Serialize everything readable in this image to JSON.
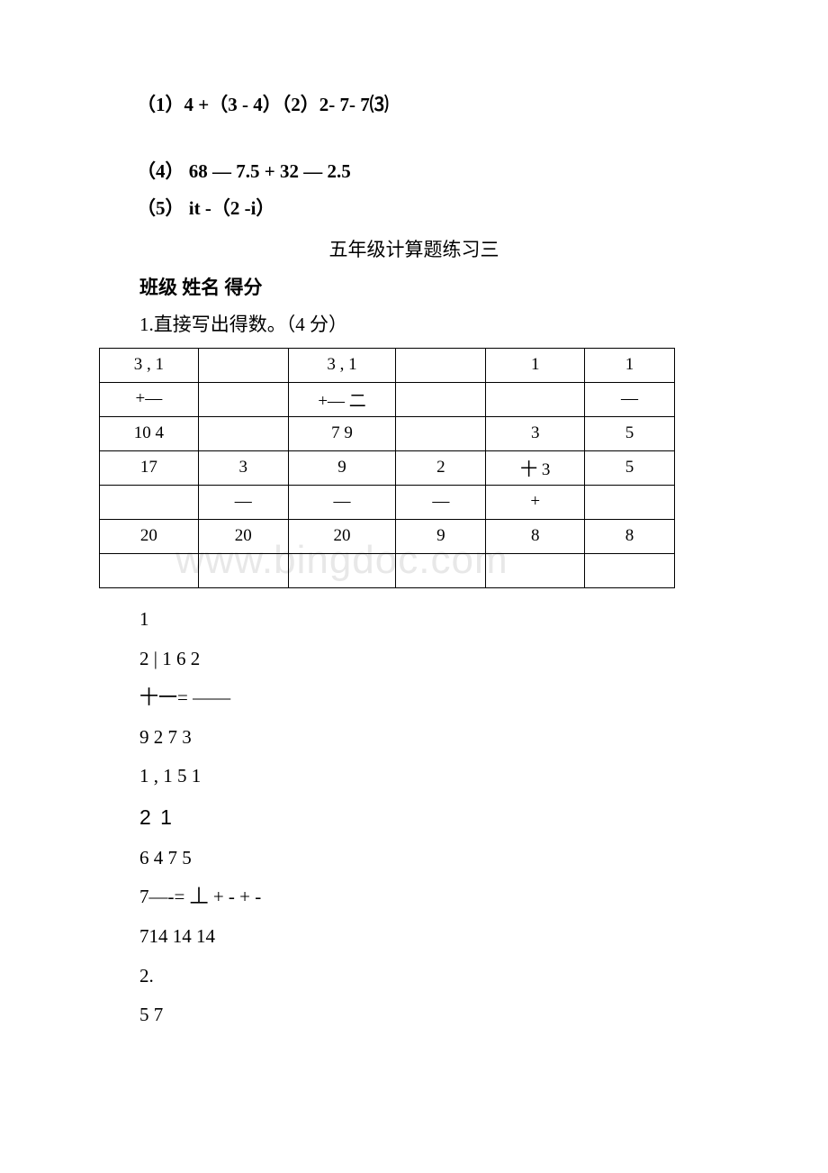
{
  "problems": {
    "p1_2": "（1）4 +（3 - 4）（2）2- 7- 7",
    "p3_marker": "⑶",
    "p4": "（4） 68 — 7.5 + 32 — 2.5",
    "p5": "（5） it -（2 -i）"
  },
  "section": {
    "title": "五年级计算题练习三",
    "header_line": "班级 姓名 得分",
    "q1": "1.直接写出得数。（4 分）"
  },
  "table": {
    "rows": [
      [
        "3 , 1",
        "",
        "3 , 1",
        "",
        "1",
        "1"
      ],
      [
        "+—",
        "",
        "+— 二",
        "",
        "",
        "—"
      ],
      [
        "10 4",
        "",
        "7 9",
        "",
        "3",
        "5"
      ],
      [
        "17",
        "3",
        "9",
        "2",
        "十 3",
        "5"
      ],
      [
        "",
        "—",
        "—",
        "—",
        "+",
        ""
      ],
      [
        "20",
        "20",
        "20",
        "9",
        "8",
        "8"
      ],
      [
        "",
        "",
        "",
        "",
        "",
        ""
      ]
    ]
  },
  "textlist": [
    "1",
    "2 | 1 6 2",
    "十一= ——",
    "9 2 7 3",
    "1 , 1 5 1",
    "2    1",
    "6 4 7 5",
    "7—-= 丄 + - + -",
    "714 14 14",
    "2.",
    "5 7"
  ],
  "watermark": "www.bingdoc.com",
  "colors": {
    "text": "#000000",
    "background": "#ffffff",
    "watermark": "#e8e8e8",
    "border": "#000000"
  },
  "fontsize": {
    "body": 21,
    "table": 19,
    "watermark": 44
  }
}
